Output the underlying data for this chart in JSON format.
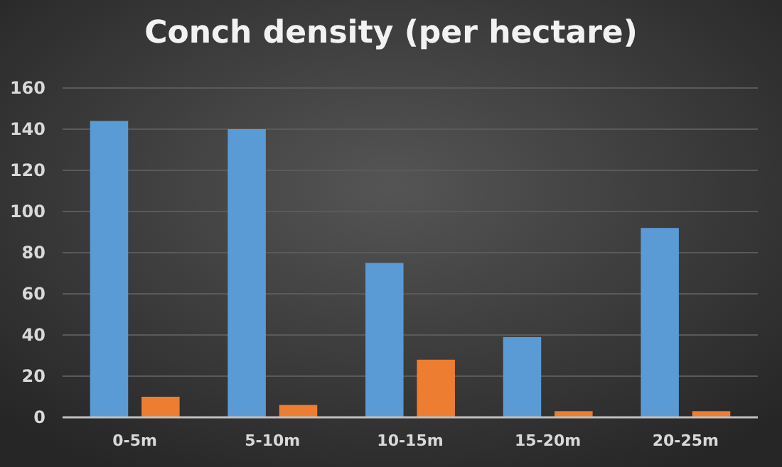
{
  "chart_data": {
    "type": "bar",
    "title": "Conch density (per hectare)",
    "categories": [
      "0-5m",
      "5-10m",
      "10-15m",
      "15-20m",
      "20-25m"
    ],
    "series": [
      {
        "color": "#5b9bd5",
        "values": [
          144,
          140,
          75,
          39,
          92
        ]
      },
      {
        "color": "#ed7d31",
        "values": [
          10,
          6,
          28,
          3,
          3
        ]
      }
    ],
    "ylim": [
      0,
      160
    ],
    "yticks": [
      0,
      20,
      40,
      60,
      80,
      100,
      120,
      140,
      160
    ],
    "grid": "y"
  }
}
